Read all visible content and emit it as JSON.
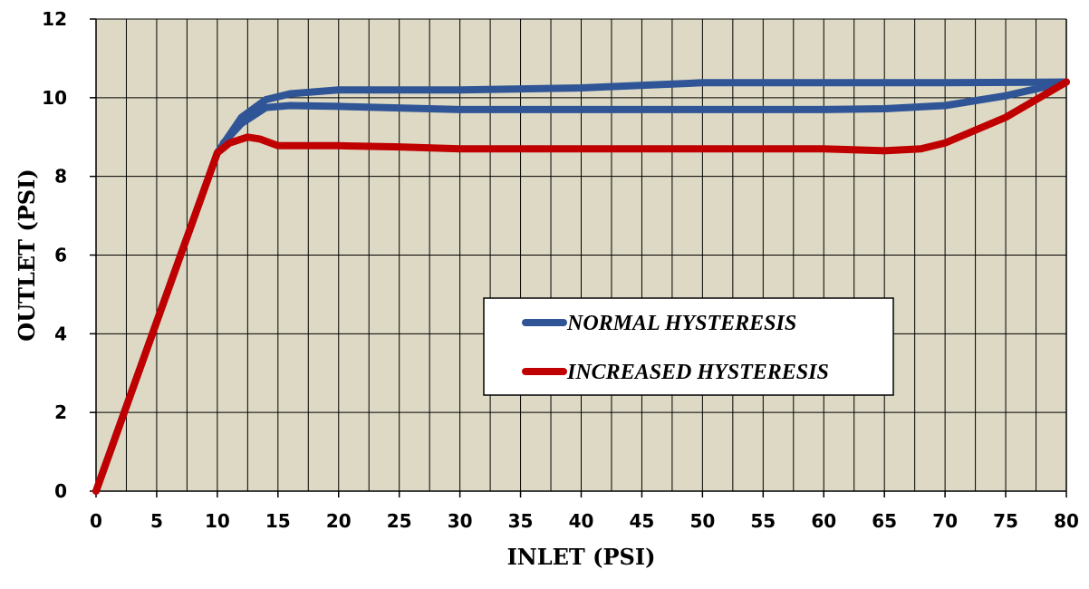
{
  "chart_data": {
    "type": "line",
    "xlabel": "INLET (PSI)",
    "ylabel": "OUTLET (PSI)",
    "xlim": [
      0,
      80
    ],
    "ylim": [
      0,
      12
    ],
    "x_ticks": [
      0,
      5,
      10,
      15,
      20,
      25,
      30,
      35,
      40,
      45,
      50,
      55,
      60,
      65,
      70,
      75,
      80
    ],
    "y_ticks": [
      0,
      2,
      4,
      6,
      8,
      10,
      12
    ],
    "grid": "vertical every 2.5, horizontal at 2 PSI steps",
    "plot_background": "#DDD9C4",
    "legend_position": "center-right",
    "series": [
      {
        "name": "NORMAL HYSTERESIS",
        "color": "#2F5597",
        "points": [
          [
            0,
            0
          ],
          [
            5,
            4.3
          ],
          [
            10,
            8.6
          ],
          [
            12,
            9.5
          ],
          [
            14,
            9.95
          ],
          [
            16,
            10.1
          ],
          [
            20,
            10.2
          ],
          [
            30,
            10.2
          ],
          [
            40,
            10.25
          ],
          [
            50,
            10.38
          ],
          [
            60,
            10.38
          ],
          [
            70,
            10.38
          ],
          [
            80,
            10.4
          ],
          [
            75,
            10.05
          ],
          [
            70,
            9.8
          ],
          [
            65,
            9.72
          ],
          [
            60,
            9.7
          ],
          [
            50,
            9.7
          ],
          [
            40,
            9.7
          ],
          [
            30,
            9.7
          ],
          [
            20,
            9.78
          ],
          [
            16,
            9.8
          ],
          [
            14,
            9.75
          ],
          [
            12,
            9.35
          ],
          [
            10.5,
            8.85
          ]
        ]
      },
      {
        "name": "INCREASED HYSTERESIS",
        "color": "#C00000",
        "points": [
          [
            0,
            0
          ],
          [
            5,
            4.3
          ],
          [
            10,
            8.6
          ],
          [
            11,
            8.85
          ],
          [
            12.5,
            9.0
          ],
          [
            13.5,
            8.95
          ],
          [
            15,
            8.78
          ],
          [
            20,
            8.78
          ],
          [
            25,
            8.75
          ],
          [
            30,
            8.7
          ],
          [
            40,
            8.7
          ],
          [
            50,
            8.7
          ],
          [
            60,
            8.7
          ],
          [
            65,
            8.65
          ],
          [
            68,
            8.7
          ],
          [
            70,
            8.85
          ],
          [
            75,
            9.5
          ],
          [
            80,
            10.4
          ]
        ]
      }
    ]
  }
}
